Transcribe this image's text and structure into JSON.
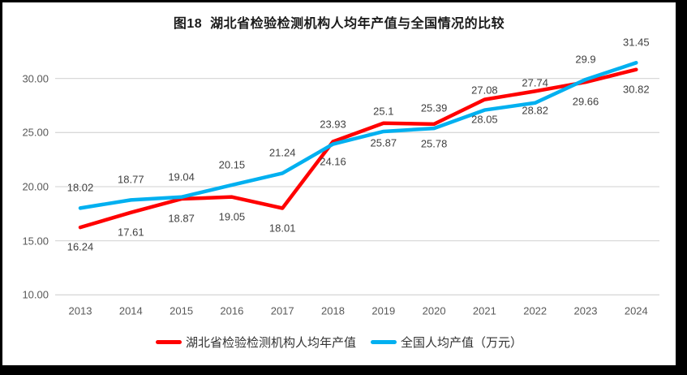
{
  "frame": {
    "border_color": "#000000",
    "background": "#ffffff"
  },
  "chart_data": {
    "type": "line",
    "title": "图18  湖北省检验检测机构人均年产值与全国情况的比较",
    "categories": [
      "2013",
      "2014",
      "2015",
      "2016",
      "2017",
      "2018",
      "2019",
      "2020",
      "2021",
      "2022",
      "2023",
      "2024"
    ],
    "series": [
      {
        "name": "湖北省检验检测机构人均年产值",
        "color": "#ff0000",
        "values": [
          16.24,
          17.61,
          18.87,
          19.05,
          18.01,
          24.16,
          25.87,
          25.78,
          28.05,
          28.82,
          29.66,
          30.82
        ],
        "label_position": "below"
      },
      {
        "name": "全国人均产值（万元）",
        "color": "#00b0f0",
        "values": [
          18.02,
          18.77,
          19.04,
          20.15,
          21.24,
          23.93,
          25.1,
          25.39,
          27.08,
          27.74,
          29.9,
          31.45
        ],
        "label_position": "above"
      }
    ],
    "y_axis": {
      "tick_labels": [
        "30.00",
        "25.00",
        "20.00",
        "15.00",
        "10.00"
      ],
      "tick_values": [
        30,
        25,
        20,
        15,
        10
      ],
      "min": 10,
      "max": 32.6,
      "grid": true,
      "grid_color": "#d9d9d9"
    },
    "x_axis_label_color": "#595959",
    "data_label_color": "#404040",
    "legend_position": "bottom"
  }
}
